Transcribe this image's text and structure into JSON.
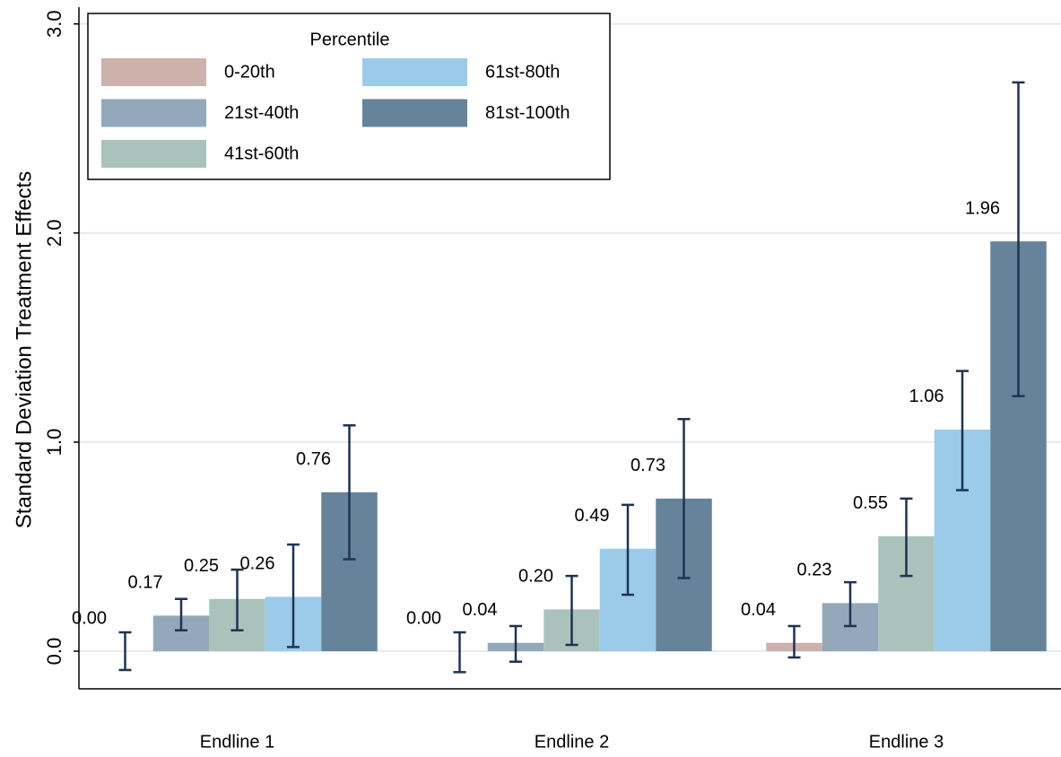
{
  "chart_data": {
    "type": "bar",
    "ylabel": "Standard Deviation Treatment Effects",
    "categories": [
      "Endline 1",
      "Endline 2",
      "Endline 3"
    ],
    "legend_title": "Percentile",
    "legend": "top-left",
    "grid": true,
    "error_color": "#1f3352",
    "ylim": [
      -0.18,
      3.08
    ],
    "yticks": [
      {
        "value": 0,
        "label": "0.0"
      },
      {
        "value": 1,
        "label": "1.0"
      },
      {
        "value": 2,
        "label": "2.0"
      },
      {
        "value": 3,
        "label": "3.0"
      }
    ],
    "series": [
      {
        "name": "0-20th",
        "color": "#cdb1ab",
        "values": [
          0,
          0,
          0.04
        ],
        "value_labels": [
          "0.00",
          "0.00",
          "0.04"
        ],
        "ci_low": [
          -0.09,
          -0.1,
          -0.03
        ],
        "ci_high": [
          0.09,
          0.09,
          0.12
        ]
      },
      {
        "name": "21st-40th",
        "color": "#93a8ba",
        "values": [
          0.17,
          0.04,
          0.23
        ],
        "value_labels": [
          "0.17",
          "0.04",
          "0.23"
        ],
        "ci_low": [
          0.1,
          -0.05,
          0.12
        ],
        "ci_high": [
          0.25,
          0.12,
          0.33
        ]
      },
      {
        "name": "41st-60th",
        "color": "#a9c3bc",
        "values": [
          0.25,
          0.2,
          0.55
        ],
        "value_labels": [
          "0.25",
          "0.20",
          "0.55"
        ],
        "ci_low": [
          0.1,
          0.03,
          0.36
        ],
        "ci_high": [
          0.39,
          0.36,
          0.73
        ]
      },
      {
        "name": "61st-80th",
        "color": "#9ccbea",
        "values": [
          0.26,
          0.49,
          1.06
        ],
        "value_labels": [
          "0.26",
          "0.49",
          "1.06"
        ],
        "ci_low": [
          0.02,
          0.27,
          0.77
        ],
        "ci_high": [
          0.51,
          0.7,
          1.34
        ]
      },
      {
        "name": "81st-100th",
        "color": "#65839a",
        "values": [
          0.76,
          0.73,
          1.96
        ],
        "value_labels": [
          "0.76",
          "0.73",
          "1.96"
        ],
        "ci_low": [
          0.44,
          0.35,
          1.22
        ],
        "ci_high": [
          1.08,
          1.11,
          2.72
        ]
      }
    ]
  }
}
